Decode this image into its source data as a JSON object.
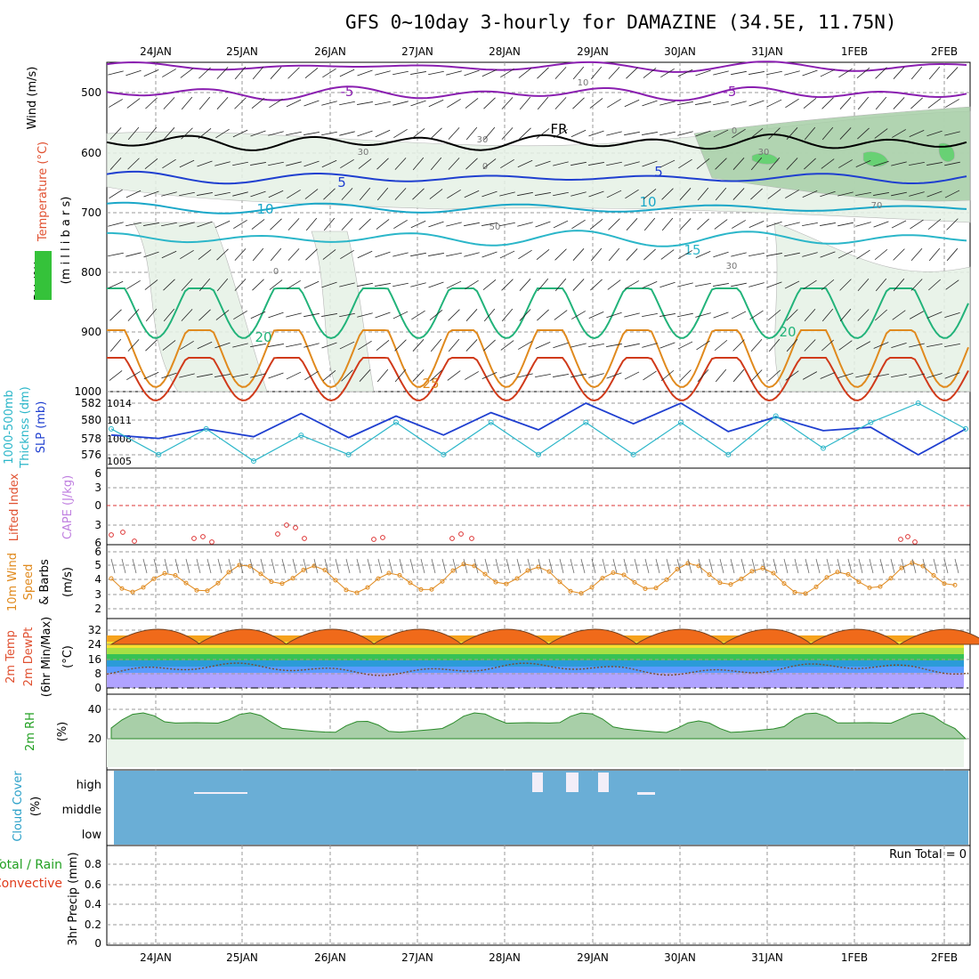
{
  "title": "GFS 0~10day 3-hourly for DAMAZINE (34.5E, 11.75N)",
  "dates": [
    "24JAN",
    "25JAN",
    "26JAN",
    "27JAN",
    "28JAN",
    "29JAN",
    "30JAN",
    "31JAN",
    "1FEB",
    "2FEB"
  ],
  "colors": {
    "grid": "#9a9a9a",
    "purple": "#8a1fb0",
    "blue": "#1f3fd0",
    "teal": "#1aa7c8",
    "cyan": "#2bb6c9",
    "green": "#22b37a",
    "orange": "#e08a1e",
    "red": "#d03a1a",
    "magenta": "#d0167a",
    "cloud": "#6aaed6",
    "rhfill": "#e6f2e6",
    "rhdark": "#a8cfa8"
  },
  "panels": {
    "upper": {
      "ylabel_wind": "Wind (m/s)",
      "ylabel_temp": "Temperature (°C)",
      "ylabel_rh": "RH (%)",
      "ylabel_mb": "(m i l l i b a r s)",
      "levels": [
        "500",
        "600",
        "700",
        "800",
        "900",
        "1000"
      ],
      "contour_labels": [
        "-5",
        "-5",
        "FR",
        "5",
        "5",
        "10",
        "10",
        "15",
        "20",
        "20",
        "25"
      ],
      "rh_labels": [
        "10",
        "30",
        "0",
        "30",
        "70",
        "50",
        "30",
        "0",
        "30",
        "0"
      ]
    },
    "thickness": {
      "ylabel_left": "1000-500mb",
      "ylabel_left2": "Thicknss (dm)",
      "ylabel_right": "SLP (mb)",
      "ticks_thk": [
        "582",
        "580",
        "578",
        "576"
      ],
      "ticks_slp": [
        "1014",
        "1011",
        "1008",
        "1005"
      ]
    },
    "lifted": {
      "ylabel_li": "Lifted Index",
      "ylabel_cape": "CAPE (J/kg)",
      "ticks": [
        "6",
        "3",
        "0",
        "3",
        "6"
      ]
    },
    "wind10": {
      "ylabel1": "10m Wind",
      "ylabel2": "Speed",
      "ylabel3": "& Barbs",
      "unit": "(m/s)",
      "ticks": [
        "6",
        "5",
        "4",
        "3",
        "2"
      ]
    },
    "temp2m": {
      "ylabel1": "2m Temp",
      "ylabel2": "2m DewPt",
      "ylabel3": "(6hr Min/Max)",
      "unit": "(°C)",
      "ticks": [
        "32",
        "24",
        "16",
        "8",
        "0"
      ]
    },
    "rh2m": {
      "ylabel": "2m RH",
      "unit": "(%)",
      "ticks": [
        "40",
        "20"
      ]
    },
    "cloud": {
      "ylabel": "Cloud Cover",
      "unit": "(%)",
      "levels": [
        "high",
        "middle",
        "low"
      ]
    },
    "precip": {
      "ylabel1": "Total / Rain",
      "ylabel2": "Convective",
      "ylabel3": "3hr Precip (mm)",
      "run_total": "Run Total = 0",
      "ticks": [
        "0.8",
        "0.6",
        "0.4",
        "0.2",
        "0"
      ]
    }
  },
  "chart_data": [
    {
      "type": "line",
      "title": "1000-500mb Thickness (dm)",
      "x": [
        "24JAN 00",
        "24JAN 12",
        "25JAN 00",
        "25JAN 12",
        "26JAN 00",
        "26JAN 12",
        "27JAN 00",
        "27JAN 12",
        "28JAN 00",
        "28JAN 12",
        "29JAN 00",
        "29JAN 12",
        "30JAN 00",
        "30JAN 12",
        "31JAN 00",
        "31JAN 12",
        "1FEB 00",
        "1FEB 12",
        "2FEB 00"
      ],
      "series": [
        {
          "name": "Thickness",
          "values": [
            578.3,
            577.9,
            579.0,
            578.1,
            580.8,
            578.0,
            580.5,
            578.3,
            580.9,
            578.9,
            582.0,
            579.6,
            582.0,
            578.7,
            580.4,
            578.8,
            579.2,
            576.0,
            579.0
          ]
        },
        {
          "name": "SLP",
          "values": [
            1010,
            1006,
            1010,
            1005,
            1009,
            1006,
            1011,
            1006,
            1011,
            1006,
            1011,
            1006,
            1011,
            1006,
            1012,
            1007,
            1011,
            1014,
            1010
          ]
        }
      ]
    },
    {
      "type": "line",
      "title": "10m Wind Speed (m/s)",
      "x": [
        "24JAN",
        "25JAN",
        "26JAN",
        "27JAN",
        "28JAN",
        "29JAN",
        "30JAN",
        "31JAN",
        "1FEB",
        "2FEB"
      ],
      "values": [
        5.5,
        4.2,
        4.0,
        3.5,
        3.6,
        4.3,
        3.3,
        4.2,
        4.0,
        3.8
      ]
    },
    {
      "type": "area",
      "title": "2m Temp (°C)",
      "x": [
        "24JAN",
        "25JAN",
        "26JAN",
        "27JAN",
        "28JAN",
        "29JAN",
        "30JAN",
        "31JAN",
        "1FEB",
        "2FEB"
      ],
      "series": [
        {
          "name": "Temp max",
          "values": [
            31,
            31,
            32,
            32,
            33,
            33,
            32,
            33,
            34,
            33
          ]
        },
        {
          "name": "Temp min",
          "values": [
            23,
            23,
            23,
            23,
            23,
            23,
            23,
            23,
            23,
            24
          ]
        },
        {
          "name": "DewPt",
          "values": [
            11,
            8,
            7,
            6,
            5,
            3,
            1,
            8,
            8,
            8
          ]
        }
      ]
    },
    {
      "type": "area",
      "title": "2m RH (%)",
      "x": [
        "24JAN",
        "25JAN",
        "26JAN",
        "27JAN",
        "28JAN",
        "29JAN",
        "30JAN",
        "31JAN",
        "1FEB",
        "2FEB"
      ],
      "values": [
        28,
        45,
        40,
        35,
        25,
        20,
        20,
        35,
        28,
        33
      ]
    },
    {
      "type": "bar",
      "title": "3hr Precip (mm)",
      "x": [
        "24JAN",
        "25JAN",
        "26JAN",
        "27JAN",
        "28JAN",
        "29JAN",
        "30JAN",
        "31JAN",
        "1FEB",
        "2FEB"
      ],
      "values": [
        0,
        0,
        0,
        0,
        0,
        0,
        0,
        0,
        0,
        0
      ],
      "ylim": [
        0,
        0.9
      ]
    }
  ]
}
